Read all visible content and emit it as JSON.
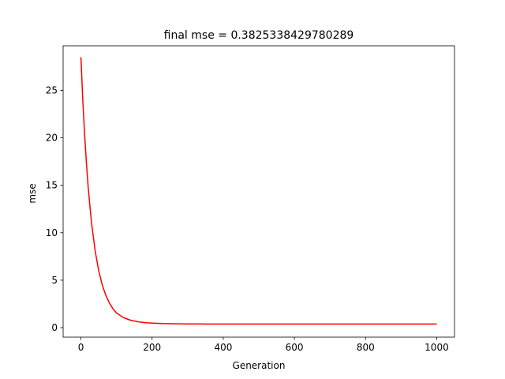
{
  "chart_data": {
    "type": "line",
    "title": "final mse = 0.3825338429780289",
    "xlabel": "Generation",
    "ylabel": "mse",
    "xlim": [
      -50,
      1050
    ],
    "ylim": [
      -1.0,
      29.7
    ],
    "xticks": [
      0,
      200,
      400,
      600,
      800,
      1000
    ],
    "xtick_labels": [
      "0",
      "200",
      "400",
      "600",
      "800",
      "1000"
    ],
    "yticks": [
      0,
      5,
      10,
      15,
      20,
      25
    ],
    "ytick_labels": [
      "0",
      "5",
      "10",
      "15",
      "20",
      "25"
    ],
    "grid": false,
    "series": [
      {
        "color": "#ff0000",
        "x": [
          0,
          5,
          10,
          15,
          20,
          25,
          30,
          40,
          50,
          60,
          70,
          80,
          90,
          100,
          120,
          140,
          160,
          180,
          200,
          230,
          260,
          300,
          350,
          400,
          500,
          600,
          700,
          800,
          900,
          1000
        ],
        "y": [
          28.5,
          24.2,
          20.6,
          17.6,
          15.0,
          12.9,
          11.0,
          8.1,
          6.0,
          4.5,
          3.4,
          2.6,
          2.0,
          1.55,
          1.05,
          0.78,
          0.62,
          0.53,
          0.48,
          0.43,
          0.41,
          0.395,
          0.388,
          0.385,
          0.384,
          0.383,
          0.383,
          0.383,
          0.383,
          0.383
        ]
      }
    ]
  }
}
